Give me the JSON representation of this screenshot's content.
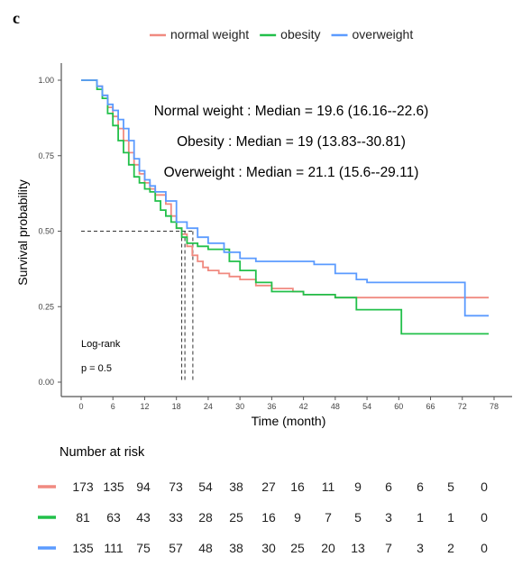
{
  "panel_label": "c",
  "chart_data": {
    "type": "line",
    "subtype": "kaplan-meier",
    "xlabel": "Time (month)",
    "ylabel": "Survival probability",
    "xlim": [
      0,
      78
    ],
    "ylim": [
      0,
      1
    ],
    "x_ticks": [
      0,
      6,
      12,
      18,
      24,
      30,
      36,
      42,
      48,
      54,
      60,
      66,
      72,
      78
    ],
    "y_ticks": [
      0,
      0.25,
      0.5,
      0.75,
      1
    ],
    "y_tick_labels": [
      "0.00",
      "0.25",
      "0.50",
      "0.75",
      "1.00"
    ],
    "grid": false,
    "legend_position": "top",
    "series": [
      {
        "name": "normal weight",
        "color": "#f08a80",
        "points": [
          [
            0,
            1
          ],
          [
            2,
            1
          ],
          [
            3,
            0.98
          ],
          [
            4,
            0.95
          ],
          [
            5,
            0.91
          ],
          [
            6,
            0.88
          ],
          [
            7,
            0.84
          ],
          [
            8,
            0.8
          ],
          [
            9,
            0.76
          ],
          [
            10,
            0.72
          ],
          [
            11,
            0.69
          ],
          [
            12,
            0.66
          ],
          [
            13,
            0.64
          ],
          [
            14,
            0.62
          ],
          [
            16,
            0.59
          ],
          [
            17,
            0.55
          ],
          [
            18,
            0.51
          ],
          [
            19,
            0.49
          ],
          [
            20,
            0.45
          ],
          [
            21,
            0.42
          ],
          [
            22,
            0.4
          ],
          [
            23,
            0.38
          ],
          [
            24,
            0.37
          ],
          [
            26,
            0.36
          ],
          [
            28,
            0.35
          ],
          [
            30,
            0.34
          ],
          [
            33,
            0.32
          ],
          [
            36,
            0.31
          ],
          [
            40,
            0.3
          ],
          [
            42,
            0.29
          ],
          [
            48,
            0.28
          ],
          [
            52,
            0.28
          ],
          [
            60,
            0.28
          ],
          [
            66,
            0.28
          ],
          [
            72,
            0.28
          ],
          [
            77,
            0.28
          ]
        ]
      },
      {
        "name": "obesity",
        "color": "#22c04a",
        "points": [
          [
            0,
            1
          ],
          [
            2,
            1
          ],
          [
            3,
            0.97
          ],
          [
            4,
            0.94
          ],
          [
            5,
            0.89
          ],
          [
            6,
            0.85
          ],
          [
            7,
            0.8
          ],
          [
            8,
            0.76
          ],
          [
            9,
            0.72
          ],
          [
            10,
            0.68
          ],
          [
            11,
            0.66
          ],
          [
            12,
            0.64
          ],
          [
            13,
            0.63
          ],
          [
            14,
            0.6
          ],
          [
            15,
            0.57
          ],
          [
            16,
            0.55
          ],
          [
            17,
            0.53
          ],
          [
            18,
            0.51
          ],
          [
            19,
            0.48
          ],
          [
            20,
            0.46
          ],
          [
            22,
            0.45
          ],
          [
            24,
            0.44
          ],
          [
            28,
            0.4
          ],
          [
            30,
            0.37
          ],
          [
            33,
            0.33
          ],
          [
            36,
            0.3
          ],
          [
            42,
            0.29
          ],
          [
            48,
            0.28
          ],
          [
            52,
            0.24
          ],
          [
            60,
            0.24
          ],
          [
            60.5,
            0.16
          ],
          [
            66,
            0.16
          ],
          [
            72,
            0.16
          ],
          [
            77,
            0.16
          ]
        ]
      },
      {
        "name": "overweight",
        "color": "#5b9bff",
        "points": [
          [
            0,
            1
          ],
          [
            2,
            1
          ],
          [
            3,
            0.98
          ],
          [
            4,
            0.95
          ],
          [
            5,
            0.92
          ],
          [
            6,
            0.9
          ],
          [
            7,
            0.87
          ],
          [
            8,
            0.84
          ],
          [
            9,
            0.8
          ],
          [
            10,
            0.74
          ],
          [
            11,
            0.7
          ],
          [
            12,
            0.67
          ],
          [
            13,
            0.65
          ],
          [
            14,
            0.63
          ],
          [
            16,
            0.6
          ],
          [
            18,
            0.53
          ],
          [
            20,
            0.51
          ],
          [
            22,
            0.48
          ],
          [
            24,
            0.46
          ],
          [
            27,
            0.43
          ],
          [
            30,
            0.41
          ],
          [
            33,
            0.4
          ],
          [
            36,
            0.4
          ],
          [
            42,
            0.4
          ],
          [
            44,
            0.39
          ],
          [
            48,
            0.36
          ],
          [
            52,
            0.34
          ],
          [
            54,
            0.33
          ],
          [
            60,
            0.33
          ],
          [
            66,
            0.33
          ],
          [
            72,
            0.33
          ],
          [
            72.5,
            0.22
          ],
          [
            77,
            0.22
          ]
        ]
      }
    ],
    "median_lines": {
      "y": 0.5,
      "x": [
        19,
        19.6,
        21.1
      ]
    },
    "annotations": {
      "medians": [
        "Normal weight : Median = 19.6 (16.16--22.6)",
        "Obesity : Median = 19 (13.83--30.81)",
        "Overweight : Median = 21.1 (15.6--29.11)"
      ],
      "logrank_title": "Log-rank",
      "logrank_p": "p = 0.5"
    },
    "risk_table": {
      "title": "Number at risk",
      "times": [
        0,
        6,
        12,
        18,
        24,
        30,
        36,
        42,
        48,
        54,
        60,
        66,
        72,
        78
      ],
      "rows": [
        {
          "color": "#f08a80",
          "values": [
            "173",
            "135",
            "94",
            "73",
            "54",
            "38",
            "27",
            "16",
            "11",
            "9",
            "6",
            "6",
            "5",
            "0"
          ]
        },
        {
          "color": "#22c04a",
          "values": [
            "81",
            "63",
            "43",
            "33",
            "28",
            "25",
            "16",
            "9",
            "7",
            "5",
            "3",
            "1",
            "1",
            "0"
          ]
        },
        {
          "color": "#5b9bff",
          "values": [
            "135",
            "111",
            "75",
            "57",
            "48",
            "38",
            "30",
            "25",
            "20",
            "13",
            "7",
            "3",
            "2",
            "0"
          ]
        }
      ]
    }
  }
}
